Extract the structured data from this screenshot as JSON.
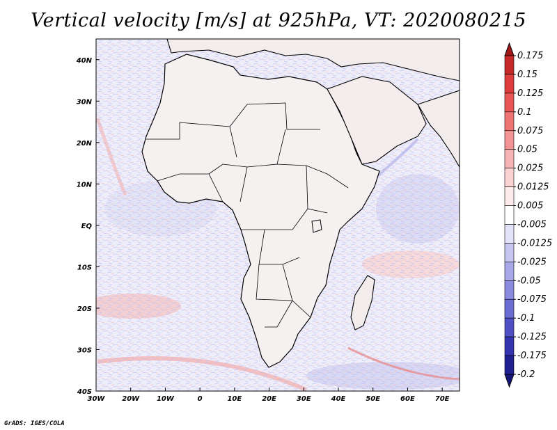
{
  "title": "Vertical velocity [m/s] at 925hPa, VT: 2020080215",
  "credit": "GrADS: IGES/COLA",
  "map": {
    "region": "Africa",
    "lon_range": [
      -30,
      75
    ],
    "lat_range": [
      -40,
      45
    ],
    "lat_ticks": [
      {
        "value": 40,
        "label": "40N"
      },
      {
        "value": 30,
        "label": "30N"
      },
      {
        "value": 20,
        "label": "20N"
      },
      {
        "value": 10,
        "label": "10N"
      },
      {
        "value": 0,
        "label": "EQ"
      },
      {
        "value": -10,
        "label": "10S"
      },
      {
        "value": -20,
        "label": "20S"
      },
      {
        "value": -30,
        "label": "30S"
      },
      {
        "value": -40,
        "label": "40S"
      }
    ],
    "lon_ticks": [
      {
        "value": -30,
        "label": "30W"
      },
      {
        "value": -20,
        "label": "20W"
      },
      {
        "value": -10,
        "label": "10W"
      },
      {
        "value": 0,
        "label": "0"
      },
      {
        "value": 10,
        "label": "10E"
      },
      {
        "value": 20,
        "label": "20E"
      },
      {
        "value": 30,
        "label": "30E"
      },
      {
        "value": 40,
        "label": "40E"
      },
      {
        "value": 50,
        "label": "50E"
      },
      {
        "value": 60,
        "label": "60E"
      },
      {
        "value": 70,
        "label": "70E"
      }
    ]
  },
  "colorbar": {
    "labels": [
      "0.175",
      "0.15",
      "0.125",
      "0.1",
      "0.075",
      "0.05",
      "0.025",
      "0.0125",
      "0.005",
      "-0.005",
      "-0.0125",
      "-0.025",
      "-0.05",
      "-0.075",
      "-0.1",
      "-0.125",
      "-0.175",
      "-0.2"
    ],
    "colors": [
      "#a01818",
      "#c42828",
      "#dc3c3c",
      "#e85656",
      "#ef7474",
      "#f39494",
      "#f7b4b4",
      "#fbd2d2",
      "#fdeaea",
      "#ffffff",
      "#e2e2f8",
      "#c6c6f1",
      "#a8a8e8",
      "#8a8ade",
      "#6c6cd2",
      "#5050c4",
      "#3434b0",
      "#202090",
      "#14147a"
    ]
  }
}
